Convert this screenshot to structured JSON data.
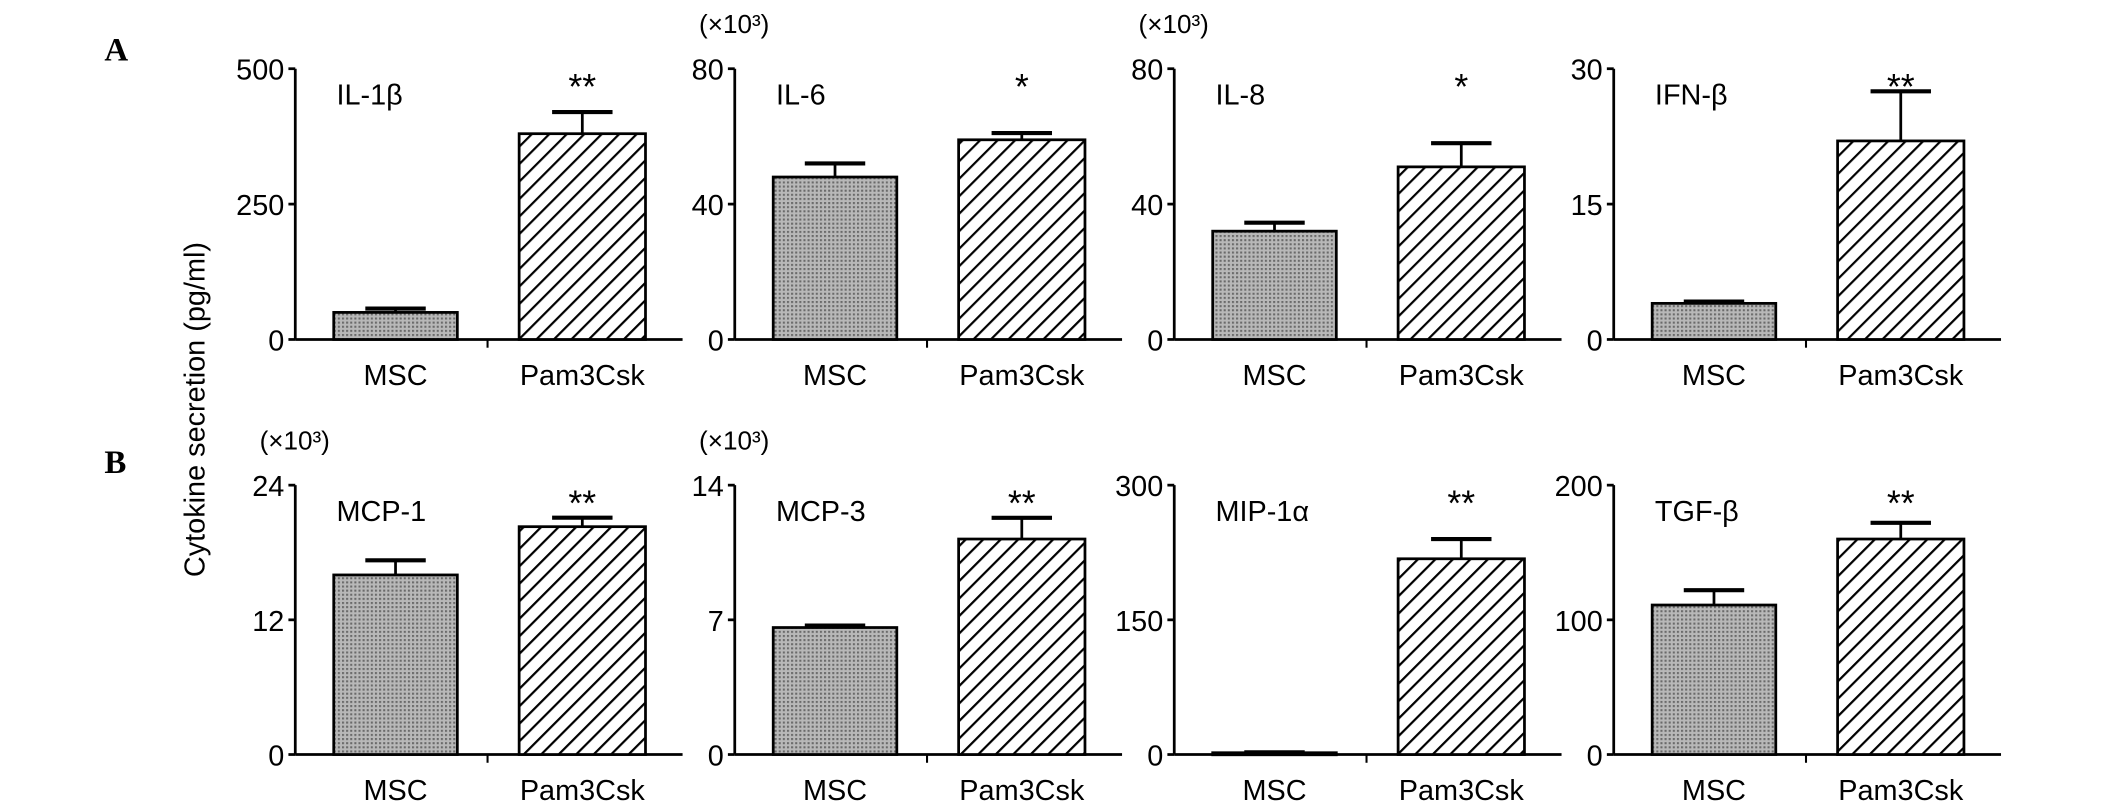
{
  "figure": {
    "panel_letters": [
      "A",
      "B"
    ],
    "ylabel": "Cytokine secretion (pg/ml)"
  },
  "chart_data": [
    {
      "type": "bar",
      "panel": "A",
      "title": "IL-1β",
      "scale_note": "",
      "categories": [
        "MSC",
        "Pam3Csk"
      ],
      "values": [
        50,
        380
      ],
      "errors": [
        7,
        40
      ],
      "significance": [
        "",
        "**"
      ],
      "ylim": [
        0,
        500
      ],
      "yticks": [
        0,
        250,
        500
      ]
    },
    {
      "type": "bar",
      "panel": "A",
      "title": "IL-6",
      "scale_note": "(×10³)",
      "categories": [
        "MSC",
        "Pam3Csk"
      ],
      "values": [
        48,
        59
      ],
      "errors": [
        4,
        2
      ],
      "significance": [
        "",
        "*"
      ],
      "ylim": [
        0,
        80
      ],
      "yticks": [
        0,
        40,
        80
      ]
    },
    {
      "type": "bar",
      "panel": "A",
      "title": "IL-8",
      "scale_note": "(×10³)",
      "categories": [
        "MSC",
        "Pam3Csk"
      ],
      "values": [
        32,
        51
      ],
      "errors": [
        2.5,
        7
      ],
      "significance": [
        "",
        "*"
      ],
      "ylim": [
        0,
        80
      ],
      "yticks": [
        0,
        40,
        80
      ]
    },
    {
      "type": "bar",
      "panel": "A",
      "title": "IFN-β",
      "scale_note": "",
      "categories": [
        "MSC",
        "Pam3Csk"
      ],
      "values": [
        4,
        22
      ],
      "errors": [
        0.2,
        5.5
      ],
      "significance": [
        "",
        "**"
      ],
      "ylim": [
        0,
        30
      ],
      "yticks": [
        0,
        15,
        30
      ]
    },
    {
      "type": "bar",
      "panel": "B",
      "title": "MCP-1",
      "scale_note": "(×10³)",
      "categories": [
        "MSC",
        "Pam3Csk"
      ],
      "values": [
        16,
        20.3
      ],
      "errors": [
        1.3,
        0.8
      ],
      "significance": [
        "",
        "**"
      ],
      "ylim": [
        0,
        24
      ],
      "yticks": [
        0,
        12,
        24
      ]
    },
    {
      "type": "bar",
      "panel": "B",
      "title": "MCP-3",
      "scale_note": "(×10³)",
      "categories": [
        "MSC",
        "Pam3Csk"
      ],
      "values": [
        6.6,
        11.2
      ],
      "errors": [
        0.1,
        1.1
      ],
      "significance": [
        "",
        "**"
      ],
      "ylim": [
        0,
        14
      ],
      "yticks": [
        0,
        7,
        14
      ]
    },
    {
      "type": "bar",
      "panel": "B",
      "title": "MIP-1α",
      "scale_note": "",
      "categories": [
        "MSC",
        "Pam3Csk"
      ],
      "values": [
        2,
        218
      ],
      "errors": [
        0.5,
        22
      ],
      "significance": [
        "",
        "**"
      ],
      "ylim": [
        0,
        300
      ],
      "yticks": [
        0,
        150,
        300
      ]
    },
    {
      "type": "bar",
      "panel": "B",
      "title": "TGF-β",
      "scale_note": "",
      "categories": [
        "MSC",
        "Pam3Csk"
      ],
      "values": [
        111,
        160
      ],
      "errors": [
        11,
        12
      ],
      "significance": [
        "",
        "**"
      ],
      "ylim": [
        0,
        200
      ],
      "yticks": [
        0,
        100,
        200
      ]
    }
  ]
}
